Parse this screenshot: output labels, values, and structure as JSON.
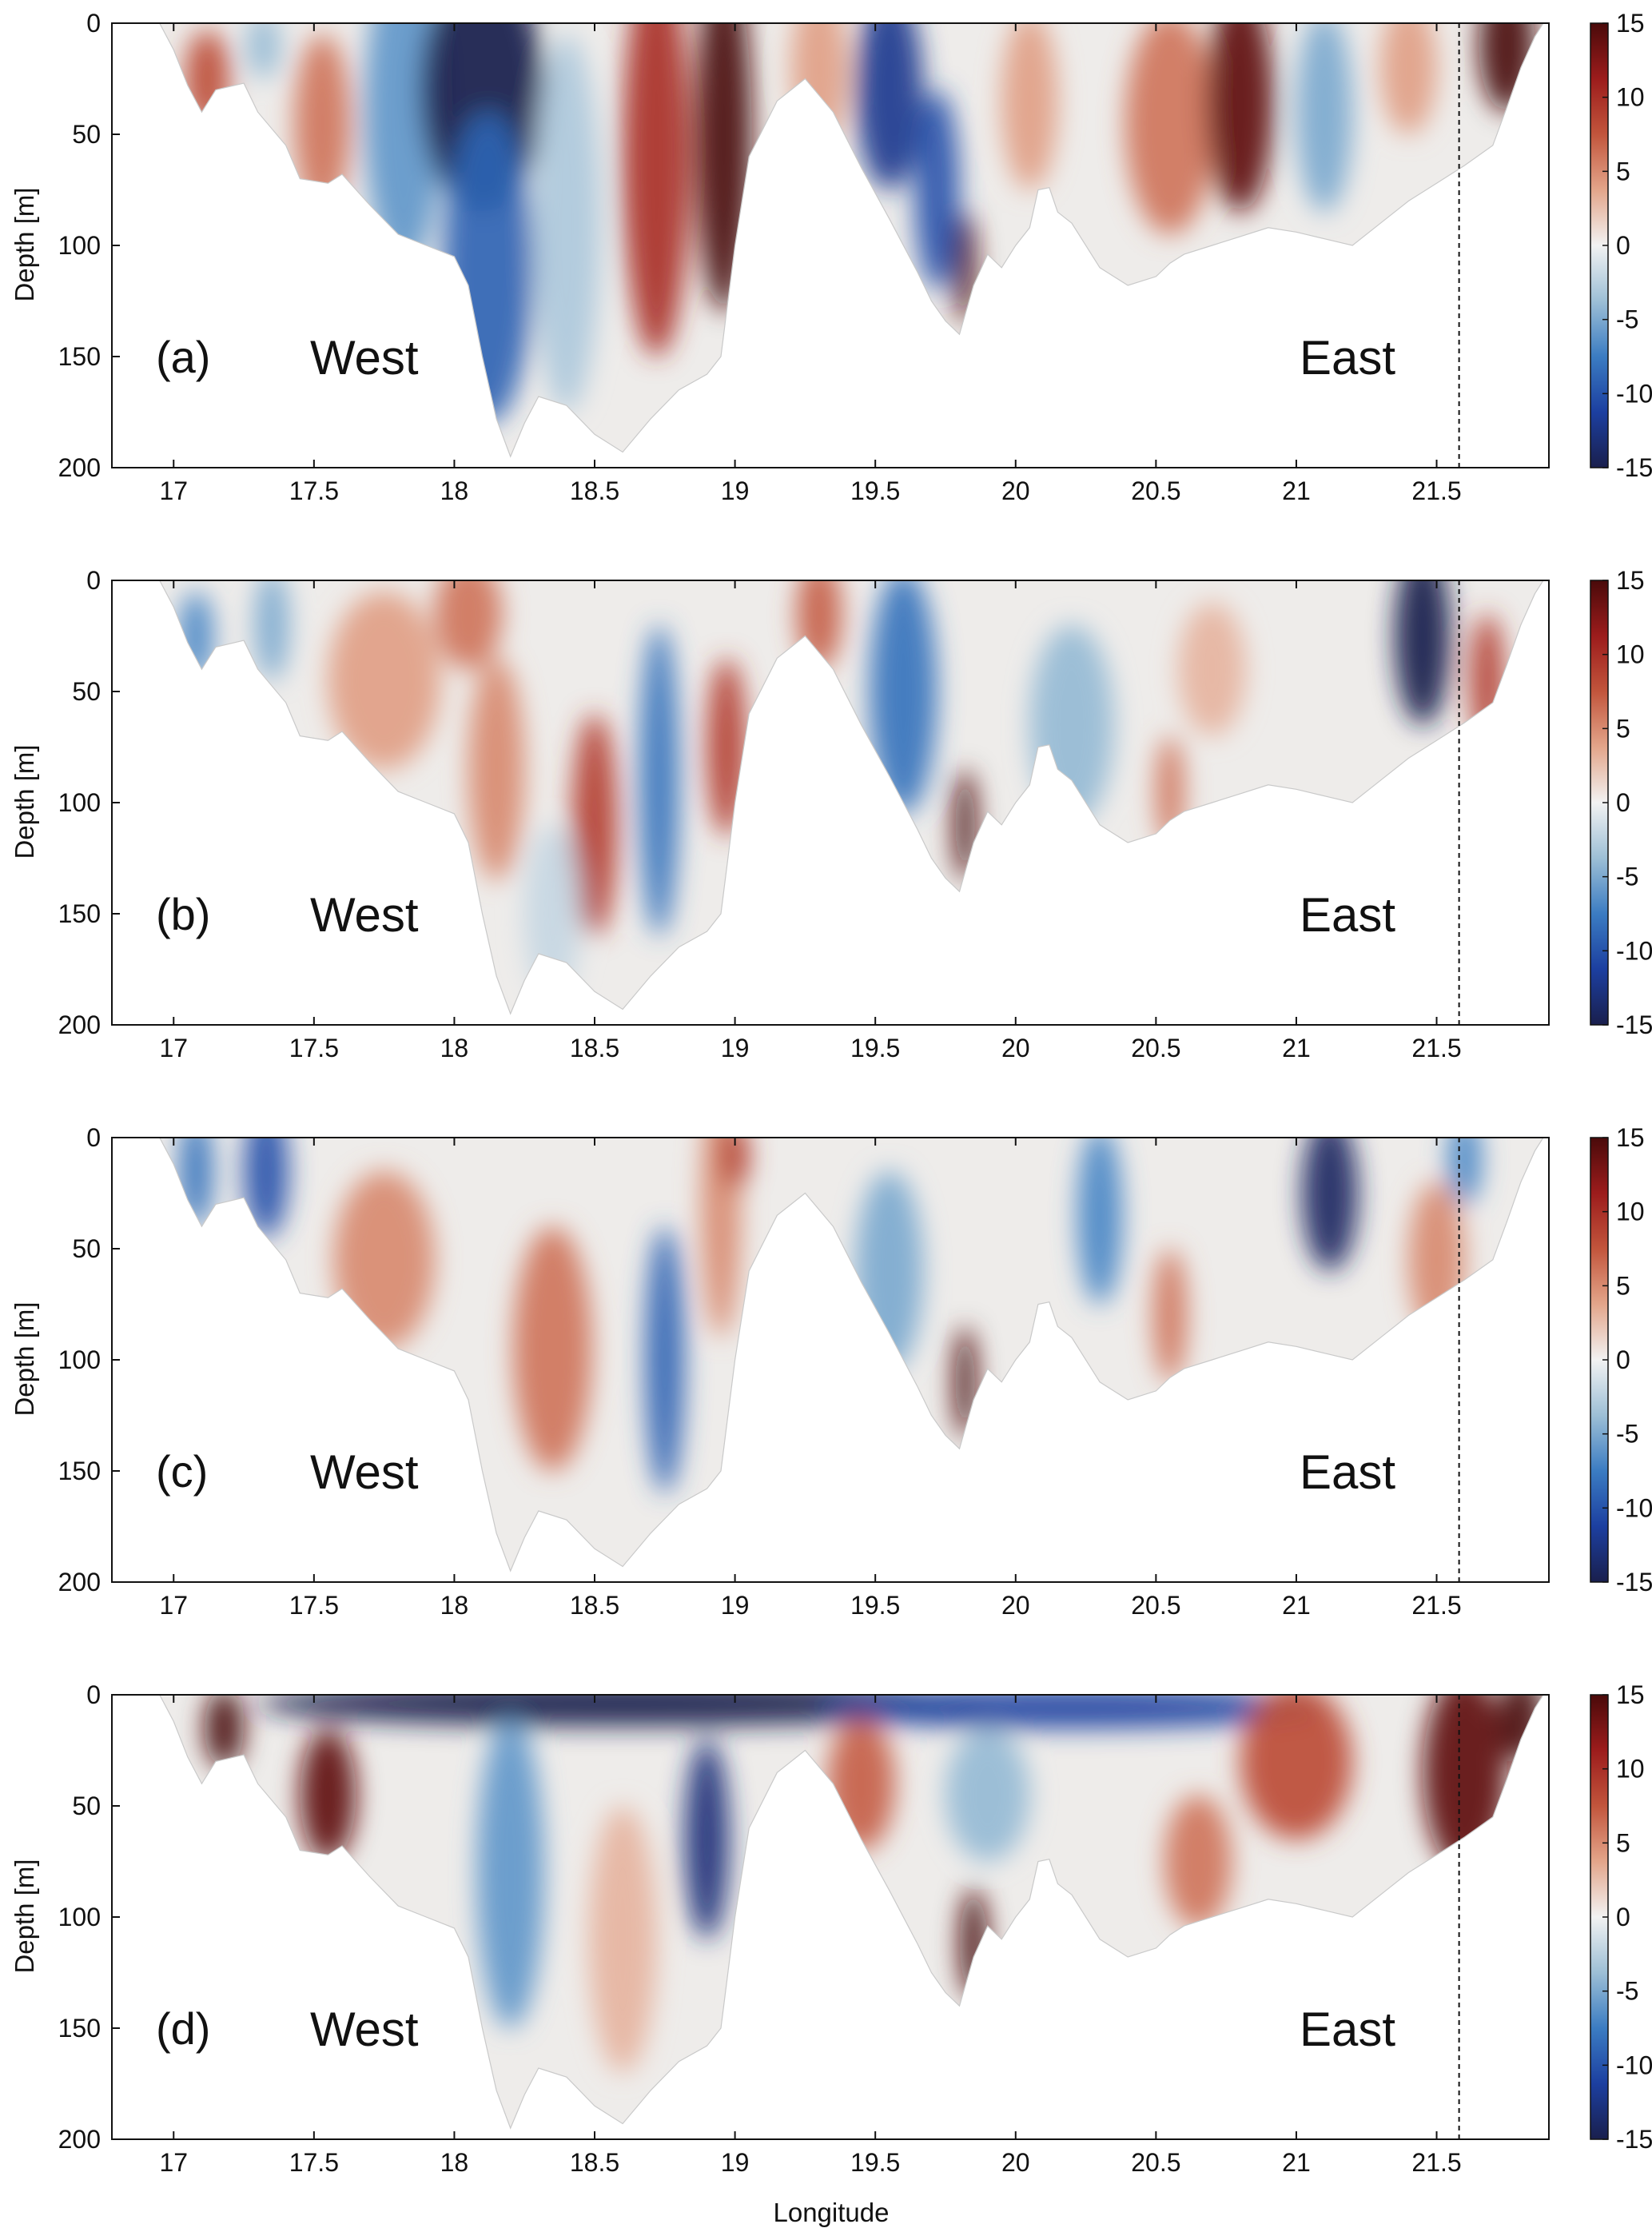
{
  "chart_data": {
    "type": "heatmap",
    "xlabel": "Longitude",
    "ylabel": "Depth [m]",
    "xlim": [
      16.78,
      21.9
    ],
    "ylim": [
      0,
      200
    ],
    "y_reversed": true,
    "x_ticks": [
      "17",
      "17.5",
      "18",
      "18.5",
      "19",
      "19.5",
      "20",
      "20.5",
      "21",
      "21.5"
    ],
    "y_ticks": [
      "0",
      "50",
      "100",
      "150",
      "200"
    ],
    "colorbar": {
      "range": [
        -15,
        15
      ],
      "ticks": [
        "15",
        "10",
        "5",
        "0",
        "-5",
        "-10",
        "-15"
      ],
      "colormap": "diverging blue-white-red",
      "colors": [
        "#1a1f4d",
        "#1c3fa0",
        "#3b7cc2",
        "#9dbfd6",
        "#f2f2f2",
        "#e3a58a",
        "#c2553c",
        "#9c1c1c",
        "#4a0a0a"
      ]
    },
    "reference_line_longitude": 21.58,
    "bottom_profile": [
      [
        16.95,
        0
      ],
      [
        17.0,
        12
      ],
      [
        17.05,
        28
      ],
      [
        17.1,
        40
      ],
      [
        17.15,
        30
      ],
      [
        17.25,
        27
      ],
      [
        17.3,
        40
      ],
      [
        17.4,
        55
      ],
      [
        17.45,
        70
      ],
      [
        17.55,
        72
      ],
      [
        17.6,
        68
      ],
      [
        17.7,
        82
      ],
      [
        17.8,
        95
      ],
      [
        17.9,
        100
      ],
      [
        18.0,
        105
      ],
      [
        18.05,
        118
      ],
      [
        18.1,
        150
      ],
      [
        18.15,
        178
      ],
      [
        18.2,
        195
      ],
      [
        18.25,
        180
      ],
      [
        18.3,
        168
      ],
      [
        18.4,
        172
      ],
      [
        18.5,
        185
      ],
      [
        18.6,
        193
      ],
      [
        18.7,
        178
      ],
      [
        18.8,
        165
      ],
      [
        18.9,
        158
      ],
      [
        18.95,
        150
      ],
      [
        19.0,
        100
      ],
      [
        19.05,
        60
      ],
      [
        19.15,
        35
      ],
      [
        19.25,
        25
      ],
      [
        19.35,
        40
      ],
      [
        19.45,
        65
      ],
      [
        19.55,
        88
      ],
      [
        19.65,
        112
      ],
      [
        19.7,
        125
      ],
      [
        19.75,
        134
      ],
      [
        19.8,
        140
      ],
      [
        19.85,
        118
      ],
      [
        19.9,
        104
      ],
      [
        19.95,
        110
      ],
      [
        20.0,
        100
      ],
      [
        20.05,
        92
      ],
      [
        20.08,
        75
      ],
      [
        20.12,
        74
      ],
      [
        20.15,
        85
      ],
      [
        20.2,
        90
      ],
      [
        20.3,
        110
      ],
      [
        20.4,
        118
      ],
      [
        20.5,
        114
      ],
      [
        20.55,
        108
      ],
      [
        20.6,
        104
      ],
      [
        20.7,
        100
      ],
      [
        20.8,
        96
      ],
      [
        20.9,
        92
      ],
      [
        21.0,
        94
      ],
      [
        21.1,
        97
      ],
      [
        21.2,
        100
      ],
      [
        21.3,
        90
      ],
      [
        21.4,
        80
      ],
      [
        21.5,
        72
      ],
      [
        21.6,
        64
      ],
      [
        21.7,
        55
      ],
      [
        21.75,
        38
      ],
      [
        21.8,
        20
      ],
      [
        21.85,
        6
      ],
      [
        21.88,
        0
      ]
    ],
    "panels": [
      {
        "label": "(a)",
        "west_label": "West",
        "east_label": "East",
        "features": [
          {
            "lon": 17.12,
            "depth": 25,
            "width": 0.08,
            "height": 22,
            "value": 8
          },
          {
            "lon": 17.32,
            "depth": 10,
            "width": 0.06,
            "height": 15,
            "value": -4
          },
          {
            "lon": 17.53,
            "depth": 45,
            "width": 0.1,
            "height": 40,
            "value": 6
          },
          {
            "lon": 17.82,
            "depth": 40,
            "width": 0.14,
            "height": 70,
            "value": -6
          },
          {
            "lon": 18.1,
            "depth": 30,
            "width": 0.22,
            "height": 55,
            "value": -15
          },
          {
            "lon": 18.12,
            "depth": 110,
            "width": 0.16,
            "height": 70,
            "value": -9
          },
          {
            "lon": 18.4,
            "depth": 90,
            "width": 0.12,
            "height": 85,
            "value": -3
          },
          {
            "lon": 18.72,
            "depth": 60,
            "width": 0.12,
            "height": 90,
            "value": 10
          },
          {
            "lon": 18.96,
            "depth": 50,
            "width": 0.1,
            "height": 80,
            "value": 15
          },
          {
            "lon": 19.3,
            "depth": 20,
            "width": 0.1,
            "height": 35,
            "value": 4
          },
          {
            "lon": 19.55,
            "depth": 30,
            "width": 0.12,
            "height": 45,
            "value": -12
          },
          {
            "lon": 19.72,
            "depth": 75,
            "width": 0.08,
            "height": 45,
            "value": -10
          },
          {
            "lon": 19.82,
            "depth": 110,
            "width": 0.04,
            "height": 25,
            "value": 15
          },
          {
            "lon": 20.05,
            "depth": 35,
            "width": 0.1,
            "height": 40,
            "value": 4
          },
          {
            "lon": 20.55,
            "depth": 45,
            "width": 0.16,
            "height": 50,
            "value": 6
          },
          {
            "lon": 20.8,
            "depth": 35,
            "width": 0.12,
            "height": 50,
            "value": 14
          },
          {
            "lon": 21.1,
            "depth": 40,
            "width": 0.1,
            "height": 45,
            "value": -5
          },
          {
            "lon": 21.4,
            "depth": 20,
            "width": 0.1,
            "height": 30,
            "value": 4
          },
          {
            "lon": 21.75,
            "depth": 10,
            "width": 0.1,
            "height": 30,
            "value": 15
          }
        ]
      },
      {
        "label": "(b)",
        "west_label": "West",
        "east_label": "East",
        "features": [
          {
            "lon": 17.08,
            "depth": 25,
            "width": 0.06,
            "height": 20,
            "value": -7
          },
          {
            "lon": 17.35,
            "depth": 20,
            "width": 0.06,
            "height": 25,
            "value": -5
          },
          {
            "lon": 17.75,
            "depth": 45,
            "width": 0.2,
            "height": 40,
            "value": 4
          },
          {
            "lon": 18.05,
            "depth": 15,
            "width": 0.12,
            "height": 25,
            "value": 6
          },
          {
            "lon": 18.15,
            "depth": 85,
            "width": 0.1,
            "height": 50,
            "value": 5
          },
          {
            "lon": 18.5,
            "depth": 110,
            "width": 0.08,
            "height": 50,
            "value": 9
          },
          {
            "lon": 18.35,
            "depth": 150,
            "width": 0.1,
            "height": 40,
            "value": -2
          },
          {
            "lon": 18.73,
            "depth": 90,
            "width": 0.07,
            "height": 70,
            "value": -8
          },
          {
            "lon": 18.97,
            "depth": 75,
            "width": 0.07,
            "height": 40,
            "value": 9
          },
          {
            "lon": 19.3,
            "depth": 15,
            "width": 0.08,
            "height": 25,
            "value": 7
          },
          {
            "lon": 19.6,
            "depth": 50,
            "width": 0.12,
            "height": 55,
            "value": -8
          },
          {
            "lon": 19.82,
            "depth": 110,
            "width": 0.04,
            "height": 25,
            "value": 15
          },
          {
            "lon": 20.2,
            "depth": 65,
            "width": 0.15,
            "height": 45,
            "value": -4
          },
          {
            "lon": 20.55,
            "depth": 95,
            "width": 0.05,
            "height": 25,
            "value": 6
          },
          {
            "lon": 20.7,
            "depth": 40,
            "width": 0.12,
            "height": 30,
            "value": 3
          },
          {
            "lon": 21.45,
            "depth": 25,
            "width": 0.1,
            "height": 40,
            "value": -15
          },
          {
            "lon": 21.68,
            "depth": 45,
            "width": 0.06,
            "height": 30,
            "value": 9
          }
        ]
      },
      {
        "label": "(c)",
        "west_label": "West",
        "east_label": "East",
        "features": [
          {
            "lon": 17.08,
            "depth": 15,
            "width": 0.06,
            "height": 25,
            "value": -8
          },
          {
            "lon": 17.33,
            "depth": 15,
            "width": 0.08,
            "height": 30,
            "value": -10
          },
          {
            "lon": 17.75,
            "depth": 55,
            "width": 0.18,
            "height": 40,
            "value": 5
          },
          {
            "lon": 18.35,
            "depth": 95,
            "width": 0.14,
            "height": 55,
            "value": 6
          },
          {
            "lon": 18.75,
            "depth": 100,
            "width": 0.07,
            "height": 60,
            "value": -9
          },
          {
            "lon": 18.95,
            "depth": 30,
            "width": 0.07,
            "height": 60,
            "value": 5
          },
          {
            "lon": 19.0,
            "depth": 8,
            "width": 0.05,
            "height": 15,
            "value": 9
          },
          {
            "lon": 19.55,
            "depth": 60,
            "width": 0.12,
            "height": 45,
            "value": -5
          },
          {
            "lon": 19.82,
            "depth": 110,
            "width": 0.04,
            "height": 25,
            "value": 15
          },
          {
            "lon": 20.3,
            "depth": 35,
            "width": 0.08,
            "height": 40,
            "value": -7
          },
          {
            "lon": 20.55,
            "depth": 80,
            "width": 0.06,
            "height": 30,
            "value": 6
          },
          {
            "lon": 21.12,
            "depth": 25,
            "width": 0.1,
            "height": 35,
            "value": -14
          },
          {
            "lon": 21.5,
            "depth": 55,
            "width": 0.1,
            "height": 35,
            "value": 5
          },
          {
            "lon": 21.6,
            "depth": 10,
            "width": 0.06,
            "height": 20,
            "value": -7
          }
        ]
      },
      {
        "label": "(d)",
        "west_label": "West",
        "east_label": "East",
        "features": [
          {
            "lon": 18.6,
            "depth": 4,
            "width": 1.3,
            "height": 10,
            "value": -15
          },
          {
            "lon": 20.2,
            "depth": 6,
            "width": 0.9,
            "height": 9,
            "value": -11
          },
          {
            "lon": 17.18,
            "depth": 15,
            "width": 0.07,
            "height": 18,
            "value": 15
          },
          {
            "lon": 17.55,
            "depth": 45,
            "width": 0.1,
            "height": 30,
            "value": 14
          },
          {
            "lon": 18.2,
            "depth": 80,
            "width": 0.12,
            "height": 70,
            "value": -6
          },
          {
            "lon": 18.9,
            "depth": 65,
            "width": 0.08,
            "height": 45,
            "value": -13
          },
          {
            "lon": 18.6,
            "depth": 110,
            "width": 0.12,
            "height": 60,
            "value": 3
          },
          {
            "lon": 19.45,
            "depth": 40,
            "width": 0.12,
            "height": 30,
            "value": 7
          },
          {
            "lon": 19.9,
            "depth": 45,
            "width": 0.15,
            "height": 30,
            "value": -4
          },
          {
            "lon": 19.85,
            "depth": 112,
            "width": 0.05,
            "height": 25,
            "value": 15
          },
          {
            "lon": 20.65,
            "depth": 75,
            "width": 0.12,
            "height": 30,
            "value": 6
          },
          {
            "lon": 21.0,
            "depth": 30,
            "width": 0.2,
            "height": 35,
            "value": 8
          },
          {
            "lon": 21.6,
            "depth": 35,
            "width": 0.15,
            "height": 45,
            "value": 14
          },
          {
            "lon": 21.8,
            "depth": 10,
            "width": 0.08,
            "height": 20,
            "value": 15
          }
        ]
      }
    ]
  }
}
